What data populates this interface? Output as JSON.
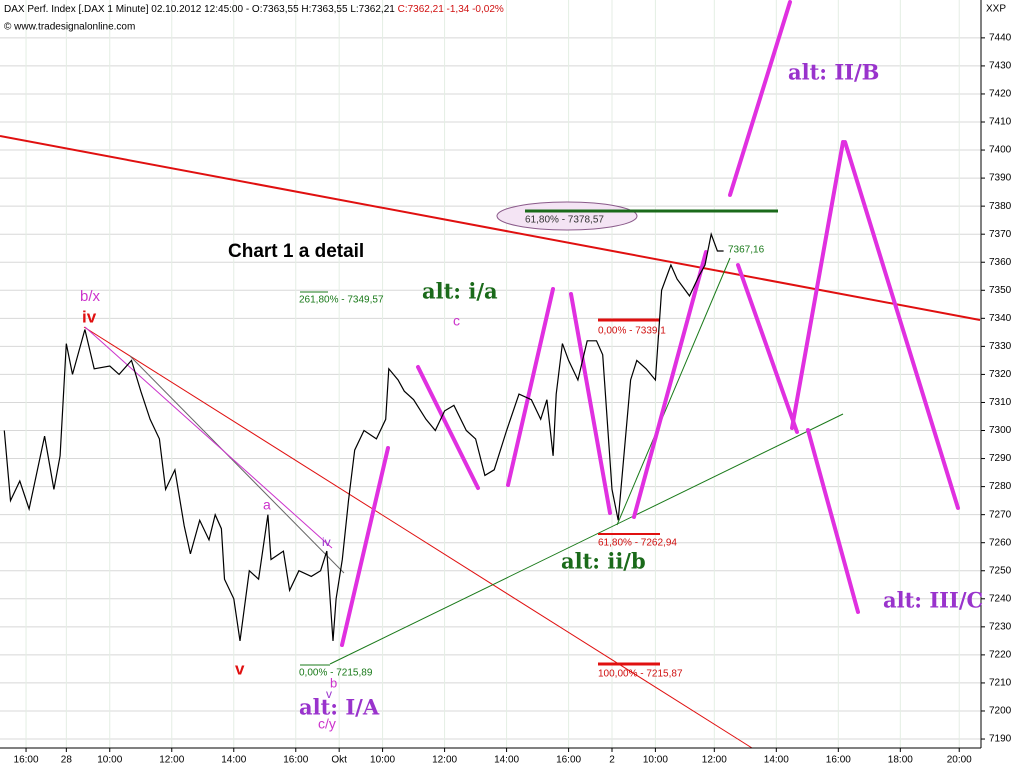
{
  "chart_data": {
    "type": "line",
    "title": "DAX Perf. Index [.DAX  1 Minute] 02.10.2012 12:45:00 - O:7363,55 H:7363,55 L:7362,21",
    "subtitle": "C:7362,21 -1,34 -0,02%",
    "source": "© www.tradesignalonline.com",
    "axis_label": "XXP",
    "x": [
      -0.7,
      -0.5,
      -0.2,
      0.1,
      0.6,
      0.9,
      1.1,
      1.3,
      1.5,
      1.9,
      2.2,
      2.7,
      3.0,
      3.4,
      3.7,
      4.0,
      4.3,
      4.5,
      4.8,
      5.1,
      5.3,
      5.6,
      5.9,
      6.1,
      6.3,
      6.4,
      6.7,
      6.9,
      7.2,
      7.5,
      7.8,
      7.9,
      8.3,
      8.5,
      8.8,
      9.2,
      9.5,
      9.7,
      9.9,
      10.0,
      10.2,
      10.4,
      10.6,
      10.9,
      11.3,
      11.6,
      11.7,
      12.0,
      12.2,
      12.5,
      12.9,
      13.2,
      13.5,
      13.8,
      14.2,
      14.5,
      14.8,
      15.1,
      15.5,
      15.9,
      16.3,
      16.6,
      16.8,
      17.0,
      17.1,
      17.3,
      17.5,
      17.8,
      18.1,
      18.4,
      18.6,
      18.9,
      19.1,
      19.3,
      19.5,
      19.7,
      20.0,
      20.3,
      20.5,
      20.8,
      21.0,
      21.4,
      21.7,
      21.9,
      22.1,
      22.3,
      22.5
    ],
    "series": [
      {
        "color": "#000000",
        "values": [
          7300,
          7275,
          7282,
          7272,
          7298,
          7279,
          7291,
          7331,
          7320,
          7336,
          7322,
          7323,
          7320,
          7325,
          7314,
          7304,
          7297,
          7279,
          7286,
          7266,
          7256,
          7268,
          7261,
          7270,
          7265,
          7247,
          7240,
          7225,
          7250,
          7247,
          7270,
          7254,
          7257,
          7243,
          7250,
          7248,
          7250,
          7257,
          7225,
          7240,
          7254,
          7275,
          7293,
          7300,
          7297,
          7304,
          7322,
          7318,
          7314,
          7311,
          7304,
          7300,
          7307,
          7309,
          7300,
          7297,
          7284,
          7286,
          7300,
          7313,
          7311,
          7304,
          7311,
          7291,
          7313,
          7331,
          7325,
          7318,
          7332,
          7332,
          7327,
          7279,
          7268,
          7293,
          7318,
          7325,
          7322,
          7318,
          7350,
          7359,
          7354,
          7348,
          7355,
          7359,
          7370,
          7364,
          7364
        ]
      }
    ],
    "xlim": [
      -0.84,
      30.77
    ],
    "ylim": [
      7186.8,
      7453.5
    ],
    "xticks": [
      {
        "value": 0,
        "label": "16:00"
      },
      {
        "value": 1.3,
        "label": "28"
      },
      {
        "value": 2.7,
        "label": "10:00"
      },
      {
        "value": 4.7,
        "label": "12:00"
      },
      {
        "value": 6.7,
        "label": "14:00"
      },
      {
        "value": 8.7,
        "label": "16:00"
      },
      {
        "value": 10.1,
        "label": "Okt"
      },
      {
        "value": 11.5,
        "label": "10:00"
      },
      {
        "value": 13.5,
        "label": "12:00"
      },
      {
        "value": 15.5,
        "label": "14:00"
      },
      {
        "value": 17.5,
        "label": "16:00"
      },
      {
        "value": 18.9,
        "label": "2"
      },
      {
        "value": 20.3,
        "label": "10:00"
      },
      {
        "value": 22.2,
        "label": "12:00"
      },
      {
        "value": 24.2,
        "label": "14:00"
      },
      {
        "value": 26.2,
        "label": "16:00"
      },
      {
        "value": 28.2,
        "label": "18:00"
      },
      {
        "value": 30.1,
        "label": "20:00"
      }
    ],
    "yticks": [
      7190,
      7200,
      7210,
      7220,
      7230,
      7240,
      7250,
      7260,
      7270,
      7280,
      7290,
      7300,
      7310,
      7320,
      7330,
      7340,
      7350,
      7360,
      7370,
      7380,
      7390,
      7400,
      7410,
      7420,
      7430,
      7440
    ],
    "grid": true,
    "annotations": [
      "Chart 1 a detail",
      "alt: i/a",
      "alt: ii/b",
      "alt: I/A",
      "alt: II/B",
      "alt: III/C",
      "b/x",
      "iv",
      "c",
      "v",
      "a",
      "iv",
      "b",
      "v",
      "c/y",
      "261,80% - 7349,57",
      "0,00% - 7339,1",
      "61,80% - 7378,57",
      "7367,16",
      "61,80% - 7262,94",
      "0,00% - 7215,89",
      "100,00% - 7215,87"
    ]
  }
}
